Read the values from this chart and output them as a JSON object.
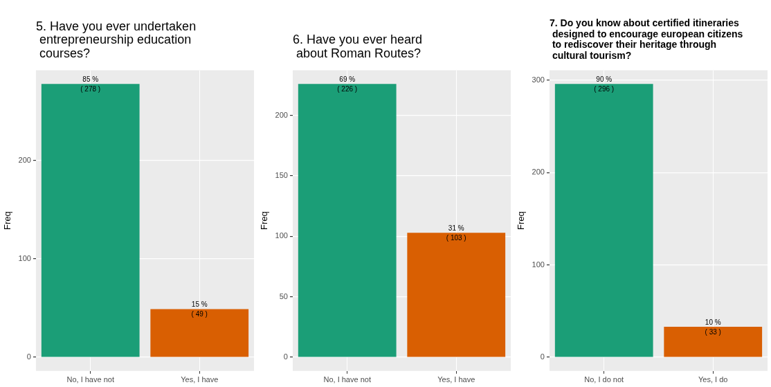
{
  "chart_data": [
    {
      "type": "bar",
      "title": "5. Have you ever undertaken\n entrepreneurship education\n courses?",
      "ylabel": "Freq",
      "categories": [
        "No, I have not",
        "Yes, I have"
      ],
      "values": [
        278,
        49
      ],
      "colors": [
        "#1b9e77",
        "#d95f02"
      ],
      "value_labels": [
        "85 %\n( 278 )",
        "15 %\n( 49 )"
      ],
      "ylim": [
        -13.9,
        291.9
      ],
      "yticks": [
        0,
        100,
        200
      ],
      "grid": true,
      "legend": false
    },
    {
      "type": "bar",
      "title": "6. Have you ever heard\n about Roman Routes?",
      "ylabel": "Freq",
      "categories": [
        "No, I have not",
        "Yes, I have"
      ],
      "values": [
        226,
        103
      ],
      "colors": [
        "#1b9e77",
        "#d95f02"
      ],
      "value_labels": [
        "69 %\n( 226 )",
        "31 %\n( 103 )"
      ],
      "ylim": [
        -11.3,
        237.3
      ],
      "yticks": [
        0,
        50,
        100,
        150,
        200
      ],
      "grid": true,
      "legend": false
    },
    {
      "type": "bar",
      "title": "7. Do you know about certified itineraries\n designed to encourage european citizens\n to rediscover their heritage through\n cultural tourism?",
      "ylabel": "Freq",
      "categories": [
        "No, I do not",
        "Yes, I do"
      ],
      "values": [
        296,
        33
      ],
      "colors": [
        "#1b9e77",
        "#d95f02"
      ],
      "value_labels": [
        "90 %\n( 296 )",
        "10 %\n( 33 )"
      ],
      "ylim": [
        -14.8,
        310.8
      ],
      "yticks": [
        0,
        100,
        200,
        300
      ],
      "grid": true,
      "legend": false
    }
  ]
}
